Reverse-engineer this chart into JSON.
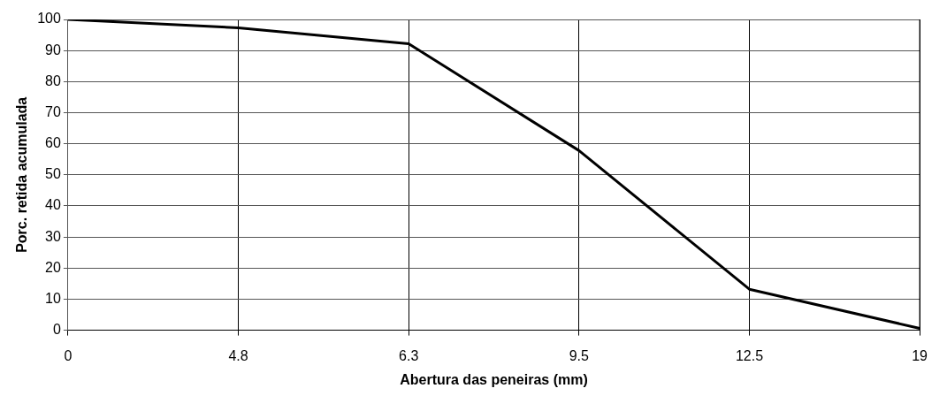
{
  "chart_data": {
    "type": "line",
    "xlabel": "Abertura das peneiras (mm)",
    "ylabel": "Porc. retida acumulada",
    "categories": [
      "0",
      "4.8",
      "6.3",
      "9.5",
      "12.5",
      "19"
    ],
    "series": [
      {
        "color": "#000000",
        "values": [
          100,
          97.3,
          92.2,
          57.8,
          13.2,
          0.6
        ]
      }
    ],
    "ylim": [
      0,
      100
    ],
    "yticks": [
      0,
      10,
      20,
      30,
      40,
      50,
      60,
      70,
      80,
      90,
      100
    ],
    "grid": true,
    "legend": false,
    "marker": "none",
    "line_style": "solid"
  }
}
